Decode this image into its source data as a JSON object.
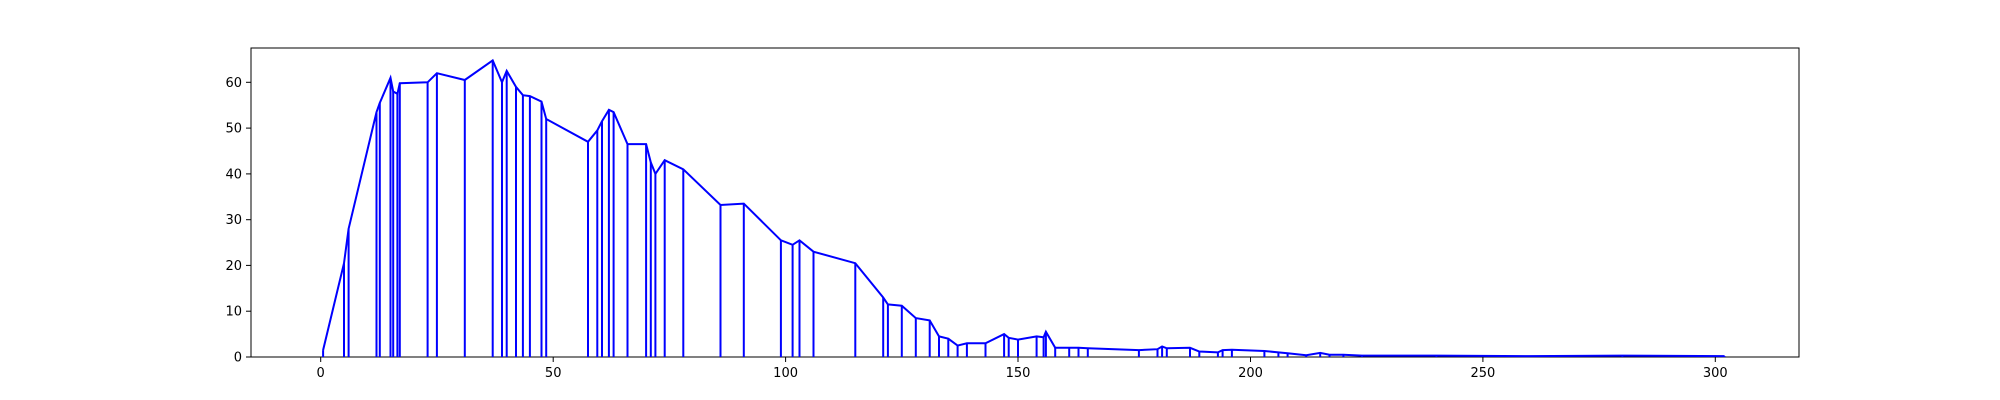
{
  "chart_data": {
    "type": "line",
    "title": "",
    "xlabel": "",
    "ylabel": "",
    "xlim": [
      -15,
      318
    ],
    "ylim": [
      0,
      67.5
    ],
    "x_ticks": [
      0,
      50,
      100,
      150,
      200,
      250,
      300
    ],
    "y_ticks": [
      0,
      10,
      20,
      30,
      40,
      50,
      60
    ],
    "grid": false,
    "legend": "none",
    "series": [
      {
        "color": "#0000ff",
        "style": "envelope-with-vertical-stems",
        "points": [
          [
            0.5,
            1.5
          ],
          [
            5,
            20.5
          ],
          [
            6,
            28
          ],
          [
            12,
            53.5
          ],
          [
            12.7,
            55.5
          ],
          [
            15,
            61
          ],
          [
            15.6,
            58
          ],
          [
            16.5,
            57.5
          ],
          [
            17,
            59.8
          ],
          [
            23,
            60
          ],
          [
            25,
            62
          ],
          [
            31,
            60.5
          ],
          [
            37,
            64.8
          ],
          [
            39,
            60
          ],
          [
            40,
            62.5
          ],
          [
            42,
            59
          ],
          [
            43.5,
            57.2
          ],
          [
            45,
            57
          ],
          [
            47.5,
            55.8
          ],
          [
            48.5,
            52
          ],
          [
            57.5,
            47
          ],
          [
            59.5,
            49.5
          ],
          [
            60.5,
            51.5
          ],
          [
            62,
            54
          ],
          [
            63,
            53.5
          ],
          [
            66,
            46.5
          ],
          [
            70,
            46.5
          ],
          [
            71,
            42.5
          ],
          [
            72,
            40
          ],
          [
            74,
            43
          ],
          [
            78,
            41
          ],
          [
            86,
            33.2
          ],
          [
            91,
            33.5
          ],
          [
            99,
            25.5
          ],
          [
            101.5,
            24.5
          ],
          [
            103,
            25.5
          ],
          [
            106,
            23
          ],
          [
            115,
            20.5
          ],
          [
            121,
            13
          ],
          [
            122,
            11.5
          ],
          [
            125,
            11.2
          ],
          [
            128,
            8.5
          ],
          [
            131,
            8
          ],
          [
            133,
            4.5
          ],
          [
            135,
            4
          ],
          [
            137,
            2.5
          ],
          [
            139,
            3
          ],
          [
            143,
            3
          ],
          [
            147,
            5
          ],
          [
            148,
            4.2
          ],
          [
            150,
            3.8
          ],
          [
            154,
            4.5
          ],
          [
            155.5,
            4.3
          ],
          [
            156,
            5.5
          ],
          [
            158,
            2
          ],
          [
            161,
            2
          ],
          [
            163,
            2
          ],
          [
            165,
            1.9
          ],
          [
            176,
            1.5
          ],
          [
            180,
            1.7
          ],
          [
            181,
            2.3
          ],
          [
            182,
            1.9
          ],
          [
            187,
            2
          ],
          [
            189,
            1.2
          ],
          [
            193,
            1
          ],
          [
            194,
            1.5
          ],
          [
            196,
            1.6
          ],
          [
            203,
            1.3
          ],
          [
            206,
            1
          ],
          [
            208,
            0.8
          ],
          [
            212,
            0.4
          ],
          [
            215,
            0.9
          ],
          [
            217,
            0.5
          ],
          [
            220,
            0.5
          ],
          [
            224,
            0.3
          ],
          [
            240,
            0.3
          ],
          [
            260,
            0.2
          ],
          [
            280,
            0.3
          ],
          [
            302,
            0.2
          ]
        ]
      }
    ]
  }
}
